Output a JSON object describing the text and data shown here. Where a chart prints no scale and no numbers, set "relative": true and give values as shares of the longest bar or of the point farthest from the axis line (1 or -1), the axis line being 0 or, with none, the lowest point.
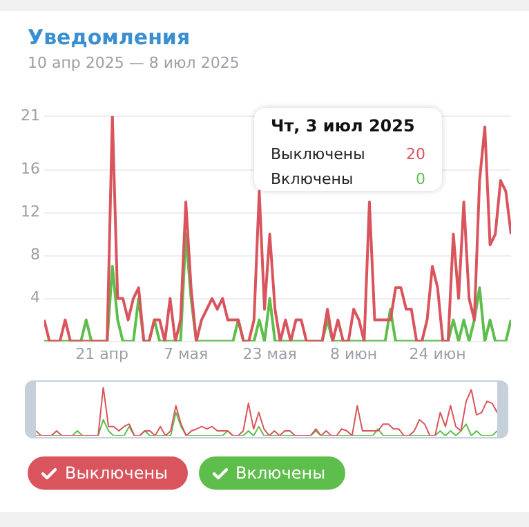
{
  "chart_data": [
    {
      "type": "line",
      "title": "Уведомления",
      "subtitle": "10 апр 2025 — 8 июл 2025",
      "x": [
        "2025-04-10",
        "2025-04-11",
        "2025-04-12",
        "2025-04-13",
        "2025-04-14",
        "2025-04-15",
        "2025-04-16",
        "2025-04-17",
        "2025-04-18",
        "2025-04-19",
        "2025-04-20",
        "2025-04-21",
        "2025-04-22",
        "2025-04-23",
        "2025-04-24",
        "2025-04-25",
        "2025-04-26",
        "2025-04-27",
        "2025-04-28",
        "2025-04-29",
        "2025-04-30",
        "2025-05-01",
        "2025-05-02",
        "2025-05-03",
        "2025-05-04",
        "2025-05-05",
        "2025-05-06",
        "2025-05-07",
        "2025-05-08",
        "2025-05-09",
        "2025-05-10",
        "2025-05-11",
        "2025-05-12",
        "2025-05-13",
        "2025-05-14",
        "2025-05-15",
        "2025-05-16",
        "2025-05-17",
        "2025-05-18",
        "2025-05-19",
        "2025-05-20",
        "2025-05-21",
        "2025-05-22",
        "2025-05-23",
        "2025-05-24",
        "2025-05-25",
        "2025-05-26",
        "2025-05-27",
        "2025-05-28",
        "2025-05-29",
        "2025-05-30",
        "2025-05-31",
        "2025-06-01",
        "2025-06-02",
        "2025-06-03",
        "2025-06-04",
        "2025-06-05",
        "2025-06-06",
        "2025-06-07",
        "2025-06-08",
        "2025-06-09",
        "2025-06-10",
        "2025-06-11",
        "2025-06-12",
        "2025-06-13",
        "2025-06-14",
        "2025-06-15",
        "2025-06-16",
        "2025-06-17",
        "2025-06-18",
        "2025-06-19",
        "2025-06-20",
        "2025-06-21",
        "2025-06-22",
        "2025-06-23",
        "2025-06-24",
        "2025-06-25",
        "2025-06-26",
        "2025-06-27",
        "2025-06-28",
        "2025-06-29",
        "2025-06-30",
        "2025-07-01",
        "2025-07-02",
        "2025-07-03",
        "2025-07-04",
        "2025-07-05",
        "2025-07-06",
        "2025-07-07",
        "2025-07-08"
      ],
      "series": [
        {
          "name": "Выключены",
          "color": "#d9545c",
          "values": [
            2,
            0,
            0,
            0,
            2,
            0,
            0,
            0,
            0,
            0,
            0,
            0,
            0,
            21,
            4,
            4,
            2,
            4,
            5,
            0,
            0,
            2,
            2,
            0,
            4,
            0,
            2,
            13,
            5,
            0,
            2,
            3,
            4,
            3,
            4,
            2,
            2,
            2,
            0,
            0,
            2,
            14,
            3,
            10,
            3,
            0,
            2,
            0,
            2,
            2,
            0,
            0,
            0,
            0,
            3,
            0,
            2,
            0,
            0,
            3,
            2,
            0,
            13,
            2,
            2,
            2,
            2,
            5,
            5,
            3,
            3,
            0,
            0,
            2,
            7,
            5,
            0,
            0,
            10,
            4,
            13,
            4,
            2,
            15,
            20,
            9,
            10,
            15,
            14,
            10
          ]
        },
        {
          "name": "Включены",
          "color": "#5ebe4c",
          "values": [
            0,
            0,
            0,
            0,
            0,
            0,
            0,
            0,
            2,
            0,
            0,
            0,
            0,
            7,
            2,
            0,
            0,
            0,
            4,
            0,
            0,
            2,
            0,
            0,
            0,
            0,
            0,
            10,
            4,
            0,
            0,
            0,
            0,
            0,
            0,
            0,
            0,
            2,
            0,
            0,
            0,
            2,
            0,
            4,
            0,
            0,
            0,
            0,
            0,
            0,
            0,
            0,
            0,
            0,
            2,
            0,
            0,
            0,
            0,
            0,
            0,
            0,
            0,
            0,
            0,
            0,
            3,
            0,
            0,
            0,
            0,
            0,
            0,
            0,
            0,
            0,
            0,
            0,
            2,
            0,
            2,
            0,
            2,
            5,
            0,
            2,
            0,
            0,
            0,
            2
          ]
        }
      ],
      "annotations": [
        "Чт, 3 июл 2025",
        "Выключены",
        "20",
        "Включены",
        "0"
      ],
      "xlim": [
        "2025-04-10",
        "2025-07-08"
      ],
      "xticks": [
        {
          "value": "2025-04-21",
          "label": "21 апр"
        },
        {
          "value": "2025-05-07",
          "label": "7 мая"
        },
        {
          "value": "2025-05-23",
          "label": "23 мая"
        },
        {
          "value": "2025-06-08",
          "label": "8 июн"
        },
        {
          "value": "2025-06-24",
          "label": "24 июн"
        }
      ],
      "ylim": [
        0,
        21
      ],
      "yticks": [
        {
          "value": 0,
          "label": null
        },
        4,
        8,
        12,
        16,
        21
      ],
      "grid": "y",
      "legend": "bottom",
      "marker": "none",
      "line_style": "solid"
    },
    {
      "type": "line",
      "relative": true,
      "tick_labels": false,
      "categories": [
        null,
        null,
        null,
        null,
        null,
        null,
        null,
        null,
        null,
        null,
        null,
        null,
        null,
        null,
        null,
        null,
        null,
        null,
        null,
        null,
        null,
        null,
        null,
        null,
        null,
        null,
        null,
        null,
        null,
        null,
        null,
        null,
        null,
        null,
        null,
        null,
        null,
        null,
        null,
        null,
        null,
        null,
        null,
        null,
        null,
        null,
        null,
        null,
        null,
        null,
        null,
        null,
        null,
        null,
        null,
        null,
        null,
        null,
        null,
        null,
        null,
        null,
        null,
        null,
        null,
        null,
        null,
        null,
        null,
        null,
        null,
        null,
        null,
        null,
        null,
        null,
        null,
        null,
        null,
        null,
        null,
        null,
        null,
        null,
        null,
        null,
        null,
        null,
        null,
        null
      ],
      "series": [
        {
          "color": "#d9545c",
          "values": [
            0.1,
            0,
            0,
            0,
            0.1,
            0,
            0,
            0,
            0,
            0,
            0,
            0,
            0,
            1,
            0.19,
            0.19,
            0.1,
            0.19,
            0.24,
            0,
            0,
            0.1,
            0.1,
            0,
            0.19,
            0,
            0.1,
            0.62,
            0.24,
            0,
            0.1,
            0.14,
            0.19,
            0.14,
            0.19,
            0.1,
            0.1,
            0.1,
            0,
            0,
            0.1,
            0.67,
            0.14,
            0.48,
            0.14,
            0,
            0.1,
            0,
            0.1,
            0.1,
            0,
            0,
            0,
            0,
            0.14,
            0,
            0.1,
            0,
            0,
            0.14,
            0.1,
            0,
            0.62,
            0.1,
            0.1,
            0.1,
            0.1,
            0.24,
            0.24,
            0.14,
            0.14,
            0,
            0,
            0.1,
            0.33,
            0.24,
            0,
            0,
            0.48,
            0.19,
            0.62,
            0.19,
            0.1,
            0.71,
            0.95,
            0.43,
            0.48,
            0.71,
            0.67,
            0.48
          ]
        },
        {
          "color": "#5ebe4c",
          "values": [
            0,
            0,
            0,
            0,
            0,
            0,
            0,
            0,
            0.1,
            0,
            0,
            0,
            0,
            0.33,
            0.1,
            0,
            0,
            0,
            0.19,
            0,
            0,
            0.1,
            0,
            0,
            0,
            0,
            0,
            0.48,
            0.19,
            0,
            0,
            0,
            0,
            0,
            0,
            0,
            0,
            0.1,
            0,
            0,
            0,
            0.1,
            0,
            0.19,
            0,
            0,
            0,
            0,
            0,
            0,
            0,
            0,
            0,
            0,
            0.1,
            0,
            0,
            0,
            0,
            0,
            0,
            0,
            0,
            0,
            0,
            0,
            0.14,
            0,
            0,
            0,
            0,
            0,
            0,
            0,
            0,
            0,
            0,
            0,
            0.1,
            0,
            0.1,
            0,
            0.1,
            0.24,
            0,
            0.1,
            0,
            0,
            0,
            0.1
          ]
        }
      ]
    }
  ]
}
